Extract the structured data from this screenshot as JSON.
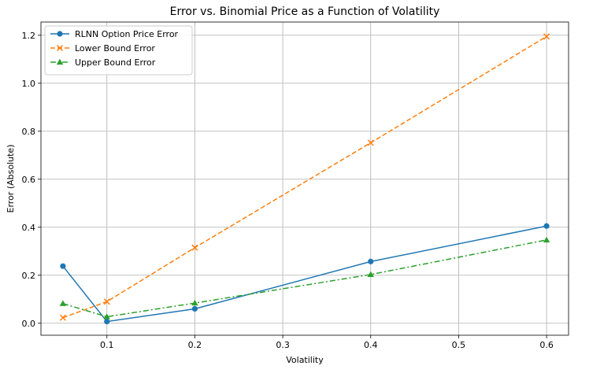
{
  "chart_data": {
    "type": "line",
    "title": "Error vs. Binomial Price as a Function of Volatility",
    "xlabel": "Volatility",
    "ylabel": "Error (Absolute)",
    "x": [
      0.05,
      0.1,
      0.2,
      0.4,
      0.6
    ],
    "xlim": [
      0.025,
      0.625
    ],
    "ylim": [
      -0.05,
      1.255
    ],
    "xticks": [
      0.1,
      0.2,
      0.3,
      0.4,
      0.5,
      0.6
    ],
    "xtick_labels": [
      "0.1",
      "0.2",
      "0.3",
      "0.4",
      "0.5",
      "0.6"
    ],
    "yticks": [
      0.0,
      0.2,
      0.4,
      0.6,
      0.8,
      1.0,
      1.2
    ],
    "ytick_labels": [
      "0.0",
      "0.2",
      "0.4",
      "0.6",
      "0.8",
      "1.0",
      "1.2"
    ],
    "grid": true,
    "legend_position": "upper-left",
    "series": [
      {
        "name": "RLNN Option Price Error",
        "values": [
          0.238,
          0.007,
          0.06,
          0.257,
          0.405
        ],
        "color": "#1f77b4",
        "marker": "circle",
        "linestyle": "solid"
      },
      {
        "name": "Lower Bound Error",
        "values": [
          0.023,
          0.09,
          0.315,
          0.752,
          1.195
        ],
        "color": "#ff7f0e",
        "marker": "x",
        "linestyle": "dashed"
      },
      {
        "name": "Upper Bound Error",
        "values": [
          0.082,
          0.027,
          0.084,
          0.203,
          0.347
        ],
        "color": "#2ca02c",
        "marker": "triangle",
        "linestyle": "dashdot"
      }
    ]
  }
}
